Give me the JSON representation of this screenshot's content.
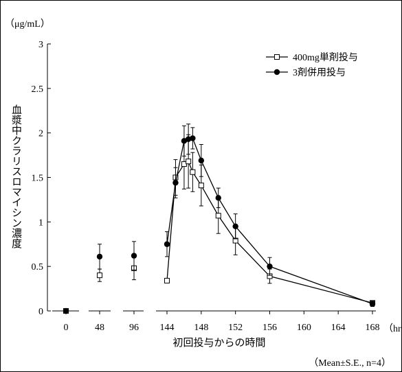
{
  "chart_data": {
    "type": "line",
    "ylabel": "血漿中クラリスロマイシン濃度",
    "y_unit": "（μg/mL）",
    "xlabel": "初回投与からの時間",
    "x_unit": "（hr）",
    "note": "（Mean±S.E., n=4）",
    "xlim": [
      0,
      168
    ],
    "ylim": [
      0,
      3
    ],
    "x_ticks": [
      0,
      48,
      96,
      144,
      148,
      152,
      156,
      160,
      164,
      168
    ],
    "x_tick_labels": [
      "0",
      "48",
      "96",
      "144",
      "148",
      "152",
      "156",
      "160",
      "164",
      "168"
    ],
    "y_ticks": [
      0,
      0.5,
      1,
      1.5,
      2,
      2.5,
      3
    ],
    "y_tick_labels": [
      "0",
      "0.5",
      "1",
      "1.5",
      "2",
      "2.5",
      "3"
    ],
    "axis_break": "x-axis broken between tick groups; compressed scale 0–144, expanded 144–168",
    "legend_position": "top-right",
    "series": [
      {
        "name": "400mg単剤投与",
        "marker": "open-square",
        "points": [
          {
            "x": 0,
            "y": 0
          },
          {
            "x": 48,
            "y": 0.4,
            "err": 0.07
          },
          {
            "x": 96,
            "y": 0.48,
            "err": 0.13
          },
          {
            "x": 144,
            "y": 0.34,
            "err": 0.0
          },
          {
            "x": 145,
            "y": 1.5,
            "err": 0.2
          },
          {
            "x": 146,
            "y": 1.65,
            "err": 0.28
          },
          {
            "x": 146.5,
            "y": 1.68,
            "err": 0.3
          },
          {
            "x": 147,
            "y": 1.56,
            "err": 0.22
          },
          {
            "x": 148,
            "y": 1.41,
            "err": 0.23
          },
          {
            "x": 150,
            "y": 1.07,
            "err": 0.2
          },
          {
            "x": 152,
            "y": 0.79,
            "err": 0.16
          },
          {
            "x": 156,
            "y": 0.39,
            "err": 0.08
          },
          {
            "x": 168,
            "y": 0.09,
            "err": 0.02
          }
        ]
      },
      {
        "name": "3剤併用投与",
        "marker": "filled-circle",
        "points": [
          {
            "x": 0,
            "y": 0
          },
          {
            "x": 48,
            "y": 0.61,
            "err": 0.14
          },
          {
            "x": 96,
            "y": 0.62,
            "err": 0.16
          },
          {
            "x": 144,
            "y": 0.75,
            "err": 0.14
          },
          {
            "x": 145,
            "y": 1.44,
            "err": 0.17
          },
          {
            "x": 146,
            "y": 1.91,
            "err": 0.17
          },
          {
            "x": 146.5,
            "y": 1.93,
            "err": 0.17
          },
          {
            "x": 147,
            "y": 1.94,
            "err": 0.12
          },
          {
            "x": 148,
            "y": 1.69,
            "err": 0.18
          },
          {
            "x": 150,
            "y": 1.27,
            "err": 0.11
          },
          {
            "x": 152,
            "y": 0.95,
            "err": 0.14
          },
          {
            "x": 156,
            "y": 0.5,
            "err": 0.1
          },
          {
            "x": 168,
            "y": 0.08,
            "err": 0.03
          }
        ]
      }
    ]
  }
}
